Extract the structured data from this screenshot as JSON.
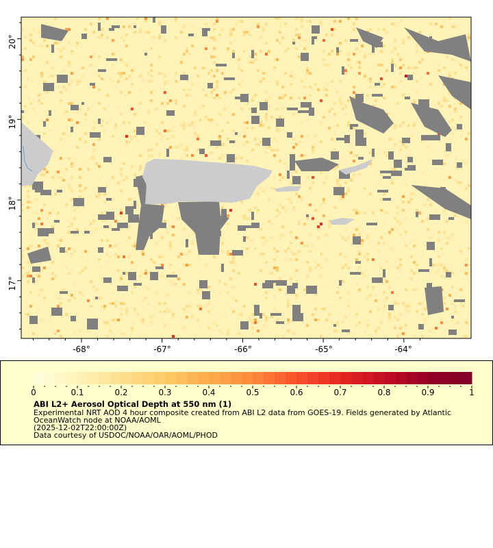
{
  "map": {
    "lat_ticks": [
      "17°",
      "18°",
      "19°",
      "20°"
    ],
    "lon_ticks": [
      "-68°",
      "-67°",
      "-66°",
      "-65°",
      "-64°"
    ],
    "colors": {
      "ocean_low": "#fff3b8",
      "land": "#cccccc",
      "cloud_nodata": "#808080",
      "river": "#6a9ed8"
    }
  },
  "legend": {
    "colorbar_ticks": [
      "0",
      "0.1",
      "0.2",
      "0.3",
      "0.4",
      "0.5",
      "0.6",
      "0.7",
      "0.8",
      "0.9",
      "1"
    ],
    "colorbar_range": [
      0,
      1
    ],
    "colormap_stops": [
      "#ffffe0",
      "#fff3b8",
      "#fee08f",
      "#fec966",
      "#fdab4b",
      "#fc8a3c",
      "#f8512b",
      "#e4281f",
      "#c40c24",
      "#960026",
      "#800026"
    ],
    "title": "ABI L2+ Aerosol Optical Depth at 550 nm (1)",
    "description_line1": "Experimental NRT AOD 4 hour composite created from ABI L2 data from GOES-19. Fields generated by Atlantic",
    "description_line2": "OceanWatch node at NOAA/AOML",
    "time": "(2025-12-02T22:00:00Z)",
    "credit": "Data courtesy of USDOC/NOAA/OAR/AOML/PHOD"
  }
}
